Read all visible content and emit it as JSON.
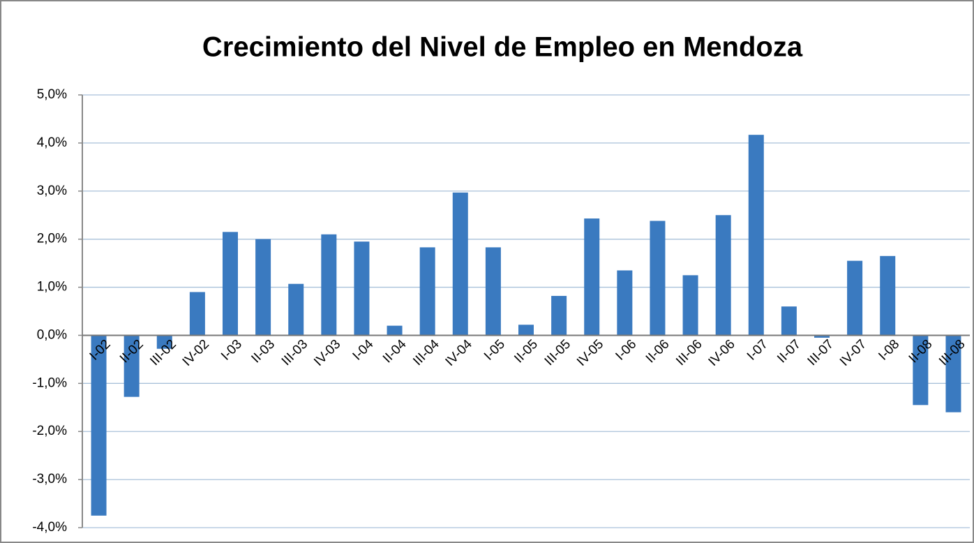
{
  "chart_data": {
    "type": "bar",
    "title": "Crecimiento del Nivel de Empleo en Mendoza",
    "categories": [
      "I-02",
      "II-02",
      "III-02",
      "IV-02",
      "I-03",
      "II-03",
      "III-03",
      "IV-03",
      "I-04",
      "II-04",
      "III-04",
      "IV-04",
      "I-05",
      "II-05",
      "III-05",
      "IV-05",
      "I-06",
      "II-06",
      "III-06",
      "IV-06",
      "I-07",
      "II-07",
      "III-07",
      "IV-07",
      "I-08",
      "II-08",
      "III-08"
    ],
    "values": [
      -3.75,
      -1.28,
      -0.28,
      0.9,
      2.15,
      2.0,
      1.07,
      2.1,
      1.95,
      0.2,
      1.83,
      2.97,
      1.83,
      0.22,
      0.82,
      2.43,
      1.35,
      2.38,
      1.25,
      2.5,
      4.17,
      0.6,
      -0.05,
      1.55,
      1.65,
      -1.45,
      -1.6
    ],
    "color": "#3a7ac0",
    "ylim": [
      -4,
      5
    ],
    "yticks": [
      {
        "value": -4,
        "label": "-4,0%"
      },
      {
        "value": -3,
        "label": "-3,0%"
      },
      {
        "value": -2,
        "label": "-2,0%"
      },
      {
        "value": -1,
        "label": "-1,0%"
      },
      {
        "value": 0,
        "label": "0,0%"
      },
      {
        "value": 1,
        "label": "1,0%"
      },
      {
        "value": 2,
        "label": "2,0%"
      },
      {
        "value": 3,
        "label": "3,0%"
      },
      {
        "value": 4,
        "label": "4,0%"
      },
      {
        "value": 5,
        "label": "5,0%"
      }
    ],
    "grid": true
  }
}
